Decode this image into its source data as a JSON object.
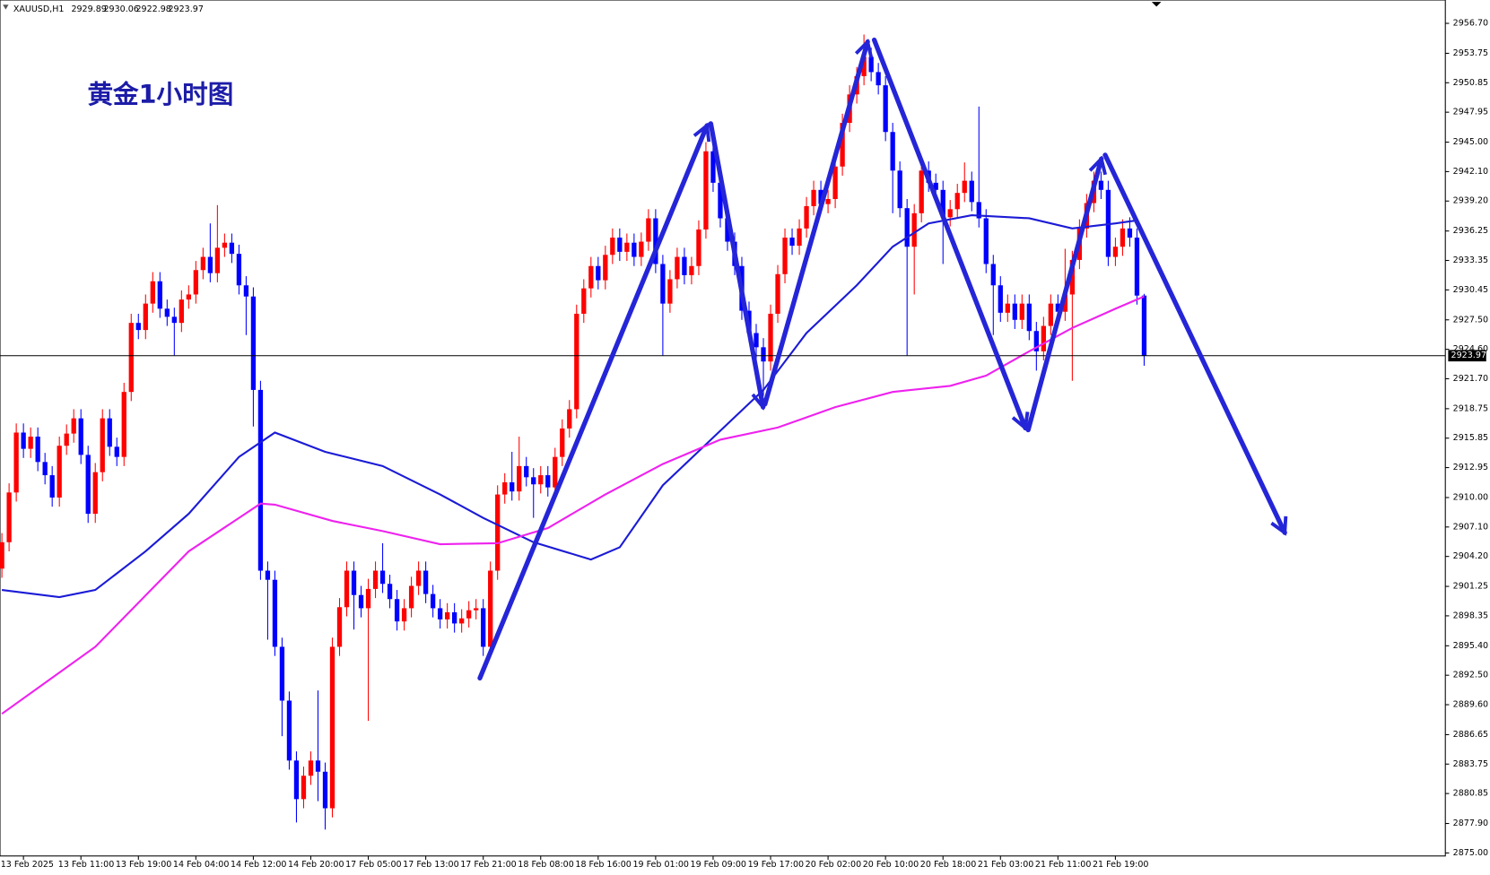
{
  "chart_data": {
    "type": "candlestick",
    "symbol": "XAUUSD,H1",
    "title": "黄金1小时图",
    "up_color": "#ff0000",
    "down_color": "#0000ff",
    "ylim": [
      2874.7,
      2959.0
    ],
    "yticks": [
      {
        "value": 2956.7,
        "label": "2956.70"
      },
      2953.75,
      2950.85,
      2947.95,
      {
        "value": 2945.0,
        "label": "2945.00"
      },
      {
        "value": 2942.1,
        "label": "2942.10"
      },
      {
        "value": 2939.2,
        "label": "2939.20"
      },
      2936.25,
      2933.35,
      2930.45,
      {
        "value": 2927.5,
        "label": "2927.50"
      },
      {
        "value": 2924.6,
        "label": "2924.60"
      },
      {
        "value": 2921.7,
        "label": "2921.70"
      },
      2918.75,
      2915.85,
      2912.95,
      {
        "value": 2910.0,
        "label": "2910.00"
      },
      {
        "value": 2907.1,
        "label": "2907.10"
      },
      {
        "value": 2904.2,
        "label": "2904.20"
      },
      2901.25,
      2898.35,
      {
        "value": 2895.4,
        "label": "2895.40"
      },
      {
        "value": 2892.5,
        "label": "2892.50"
      },
      {
        "value": 2889.6,
        "label": "2889.60"
      },
      2886.65,
      2883.75,
      2880.85,
      {
        "value": 2877.9,
        "label": "2877.90"
      },
      {
        "value": 2875.0,
        "label": "2875.00"
      }
    ],
    "categories": [
      null,
      null,
      null,
      "13 Feb 2025",
      null,
      null,
      null,
      null,
      null,
      null,
      null,
      "13 Feb 11:00",
      null,
      null,
      null,
      null,
      null,
      null,
      null,
      "13 Feb 19:00",
      null,
      null,
      null,
      null,
      null,
      null,
      null,
      "14 Feb 04:00",
      null,
      null,
      null,
      null,
      null,
      null,
      null,
      "14 Feb 12:00",
      null,
      null,
      null,
      null,
      null,
      null,
      null,
      "14 Feb 20:00",
      null,
      null,
      null,
      null,
      null,
      null,
      null,
      "17 Feb 05:00",
      null,
      null,
      null,
      null,
      null,
      null,
      null,
      "17 Feb 13:00",
      null,
      null,
      null,
      null,
      null,
      null,
      null,
      "17 Feb 21:00",
      null,
      null,
      null,
      null,
      null,
      null,
      null,
      "18 Feb 08:00",
      null,
      null,
      null,
      null,
      null,
      null,
      null,
      "18 Feb 16:00",
      null,
      null,
      null,
      null,
      null,
      null,
      null,
      "19 Feb 01:00",
      null,
      null,
      null,
      null,
      null,
      null,
      null,
      "19 Feb 09:00",
      null,
      null,
      null,
      null,
      null,
      null,
      null,
      "19 Feb 17:00",
      null,
      null,
      null,
      null,
      null,
      null,
      null,
      "20 Feb 02:00",
      null,
      null,
      null,
      null,
      null,
      null,
      null,
      "20 Feb 10:00",
      null,
      null,
      null,
      null,
      null,
      null,
      null,
      "20 Feb 18:00",
      null,
      null,
      null,
      null,
      null,
      null,
      null,
      "21 Feb 03:00",
      null,
      null,
      null,
      null,
      null,
      null,
      null,
      "21 Feb 11:00",
      null,
      null,
      null,
      null,
      null,
      null,
      null,
      "21 Feb 19:00",
      null,
      null,
      null,
      null
    ],
    "ohlc": [
      [
        2903.0,
        2906.5,
        2902.1,
        2905.6
      ],
      [
        2905.6,
        2911.4,
        2904.7,
        2910.5
      ],
      [
        2910.5,
        2917.3,
        2909.6,
        2916.4
      ],
      [
        2916.4,
        2917.3,
        2913.9,
        2914.8
      ],
      [
        2914.8,
        2916.9,
        2913.9,
        2916.0
      ],
      [
        2916.0,
        2916.9,
        2912.6,
        2913.5
      ],
      [
        2913.5,
        2914.4,
        2911.3,
        2912.2
      ],
      [
        2912.2,
        2913.1,
        2909.1,
        2910.0
      ],
      [
        2910.0,
        2916.0,
        2909.1,
        2915.1
      ],
      [
        2915.1,
        2917.2,
        2914.2,
        2916.3
      ],
      [
        2916.3,
        2918.7,
        2915.4,
        2917.8
      ],
      [
        2917.8,
        2918.7,
        2913.3,
        2914.2
      ],
      [
        2914.2,
        2915.1,
        2907.5,
        2908.4
      ],
      [
        2908.4,
        2913.4,
        2907.5,
        2912.5
      ],
      [
        2912.5,
        2918.7,
        2911.6,
        2917.8
      ],
      [
        2917.8,
        2918.7,
        2914.1,
        2915.0
      ],
      [
        2915.0,
        2915.9,
        2913.1,
        2914.0
      ],
      [
        2914.0,
        2921.3,
        2913.1,
        2920.4
      ],
      [
        2920.4,
        2928.1,
        2919.5,
        2927.2
      ],
      [
        2927.2,
        2928.1,
        2925.6,
        2926.5
      ],
      [
        2926.5,
        2930.0,
        2925.6,
        2929.1
      ],
      [
        2929.1,
        2932.2,
        2928.2,
        2931.3
      ],
      [
        2931.3,
        2932.2,
        2927.7,
        2928.6
      ],
      [
        2928.6,
        2929.5,
        2926.9,
        2927.8
      ],
      [
        2927.8,
        2928.7,
        2924.0,
        2927.2
      ],
      [
        2927.2,
        2930.4,
        2926.3,
        2929.5
      ],
      [
        2929.5,
        2930.9,
        2928.6,
        2930.0
      ],
      [
        2930.0,
        2933.3,
        2929.1,
        2932.4
      ],
      [
        2932.4,
        2934.6,
        2931.5,
        2933.7
      ],
      [
        2933.7,
        2937.0,
        2931.2,
        2932.1
      ],
      [
        2932.1,
        2938.8,
        2931.2,
        2934.6
      ],
      [
        2934.6,
        2936.0,
        2933.7,
        2935.1
      ],
      [
        2935.1,
        2936.0,
        2933.1,
        2934.0
      ],
      [
        2934.0,
        2934.9,
        2930.0,
        2930.9
      ],
      [
        2930.9,
        2931.8,
        2926.0,
        2929.8
      ],
      [
        2929.8,
        2930.7,
        2917.0,
        2920.6
      ],
      [
        2920.6,
        2921.5,
        2901.9,
        2902.8
      ],
      [
        2902.8,
        2903.7,
        2896.0,
        2901.9
      ],
      [
        2901.9,
        2902.8,
        2894.4,
        2895.3
      ],
      [
        2895.3,
        2896.2,
        2886.5,
        2890.0
      ],
      [
        2890.0,
        2890.9,
        2883.2,
        2884.1
      ],
      [
        2884.1,
        2885.0,
        2878.0,
        2880.3
      ],
      [
        2880.3,
        2883.5,
        2879.4,
        2882.6
      ],
      [
        2882.6,
        2885.0,
        2881.7,
        2884.1
      ],
      [
        2884.1,
        2891.0,
        2880.1,
        2883.0
      ],
      [
        2883.0,
        2883.9,
        2877.3,
        2879.4
      ],
      [
        2879.4,
        2896.2,
        2878.5,
        2895.3
      ],
      [
        2895.3,
        2900.1,
        2894.4,
        2899.2
      ],
      [
        2899.2,
        2903.7,
        2898.3,
        2902.8
      ],
      [
        2902.8,
        2903.7,
        2897.0,
        2900.4
      ],
      [
        2900.4,
        2901.3,
        2898.2,
        2899.1
      ],
      [
        2899.1,
        2902.0,
        2888.0,
        2901.0
      ],
      [
        2901.0,
        2903.7,
        2900.1,
        2902.8
      ],
      [
        2902.8,
        2905.5,
        2900.6,
        2901.5
      ],
      [
        2901.5,
        2902.4,
        2899.1,
        2900.0
      ],
      [
        2900.0,
        2900.9,
        2896.9,
        2897.8
      ],
      [
        2897.8,
        2900.0,
        2896.9,
        2899.1
      ],
      [
        2899.1,
        2902.2,
        2898.2,
        2901.3
      ],
      [
        2901.3,
        2903.7,
        2900.4,
        2902.8
      ],
      [
        2902.8,
        2903.7,
        2899.6,
        2900.5
      ],
      [
        2900.5,
        2901.4,
        2898.2,
        2899.1
      ],
      [
        2899.1,
        2900.0,
        2897.1,
        2898.0
      ],
      [
        2898.0,
        2899.6,
        2897.1,
        2898.7
      ],
      [
        2898.7,
        2899.6,
        2896.7,
        2897.6
      ],
      [
        2897.6,
        2899.0,
        2896.7,
        2898.1
      ],
      [
        2898.1,
        2899.8,
        2897.2,
        2898.9
      ],
      [
        2898.9,
        2900.0,
        2898.0,
        2899.1
      ],
      [
        2899.1,
        2900.0,
        2894.4,
        2895.3
      ],
      [
        2895.3,
        2903.7,
        2894.4,
        2902.8
      ],
      [
        2902.8,
        2911.2,
        2901.9,
        2910.3
      ],
      [
        2910.3,
        2912.4,
        2909.4,
        2911.5
      ],
      [
        2911.5,
        2914.5,
        2909.7,
        2910.6
      ],
      [
        2910.6,
        2916.0,
        2909.7,
        2913.1
      ],
      [
        2913.1,
        2914.0,
        2911.1,
        2912.0
      ],
      [
        2912.0,
        2912.9,
        2908.0,
        2911.3
      ],
      [
        2911.3,
        2913.1,
        2910.4,
        2912.2
      ],
      [
        2912.2,
        2913.1,
        2910.1,
        2911.0
      ],
      [
        2911.0,
        2914.9,
        2910.1,
        2914.0
      ],
      [
        2914.0,
        2917.7,
        2913.1,
        2916.8
      ],
      [
        2916.8,
        2919.6,
        2915.9,
        2918.7
      ],
      [
        2918.7,
        2929.0,
        2917.8,
        2928.1
      ],
      [
        2928.1,
        2931.5,
        2927.2,
        2930.6
      ],
      [
        2930.6,
        2933.7,
        2929.7,
        2932.8
      ],
      [
        2932.8,
        2933.7,
        2930.5,
        2931.4
      ],
      [
        2931.4,
        2934.8,
        2930.5,
        2933.9
      ],
      [
        2933.9,
        2936.5,
        2933.0,
        2935.6
      ],
      [
        2935.6,
        2936.5,
        2933.3,
        2934.2
      ],
      [
        2934.2,
        2936.0,
        2933.3,
        2935.1
      ],
      [
        2935.1,
        2936.0,
        2932.8,
        2933.7
      ],
      [
        2933.7,
        2936.1,
        2932.8,
        2935.2
      ],
      [
        2935.2,
        2938.4,
        2934.3,
        2937.5
      ],
      [
        2937.5,
        2938.4,
        2932.1,
        2933.0
      ],
      [
        2933.0,
        2933.9,
        2924.0,
        2929.1
      ],
      [
        2929.1,
        2932.4,
        2928.2,
        2931.5
      ],
      [
        2931.5,
        2934.6,
        2930.6,
        2933.7
      ],
      [
        2933.7,
        2934.6,
        2931.0,
        2931.9
      ],
      [
        2931.9,
        2933.7,
        2931.0,
        2932.8
      ],
      [
        2932.8,
        2937.3,
        2931.9,
        2936.4
      ],
      [
        2936.4,
        2945.0,
        2935.5,
        2944.1
      ],
      [
        2944.1,
        2945.0,
        2940.1,
        2941.0
      ],
      [
        2941.0,
        2941.9,
        2936.6,
        2937.5
      ],
      [
        2937.5,
        2938.4,
        2934.3,
        2935.2
      ],
      [
        2935.2,
        2936.1,
        2931.9,
        2932.8
      ],
      [
        2932.8,
        2933.7,
        2927.5,
        2928.4
      ],
      [
        2928.4,
        2929.3,
        2925.3,
        2926.2
      ],
      [
        2926.2,
        2927.1,
        2922.0,
        2924.8
      ],
      [
        2924.8,
        2925.7,
        2920.0,
        2923.4
      ],
      [
        2923.4,
        2929.0,
        2922.5,
        2928.1
      ],
      [
        2928.1,
        2932.9,
        2927.2,
        2932.0
      ],
      [
        2932.0,
        2936.5,
        2931.1,
        2935.6
      ],
      [
        2935.6,
        2936.5,
        2933.9,
        2934.8
      ],
      [
        2934.8,
        2937.4,
        2933.9,
        2936.5
      ],
      [
        2936.5,
        2939.6,
        2935.6,
        2938.7
      ],
      [
        2938.7,
        2941.2,
        2937.8,
        2940.3
      ],
      [
        2940.3,
        2941.2,
        2938.0,
        2938.9
      ],
      [
        2938.9,
        2940.3,
        2938.0,
        2939.4
      ],
      [
        2939.4,
        2943.5,
        2938.5,
        2942.6
      ],
      [
        2942.6,
        2947.8,
        2941.7,
        2946.9
      ],
      [
        2946.9,
        2950.6,
        2946.0,
        2949.7
      ],
      [
        2949.7,
        2952.4,
        2948.8,
        2951.5
      ],
      [
        2951.5,
        2955.6,
        2950.6,
        2953.4
      ],
      [
        2953.4,
        2954.3,
        2951.0,
        2951.9
      ],
      [
        2951.9,
        2952.8,
        2949.7,
        2950.6
      ],
      [
        2950.6,
        2951.5,
        2945.1,
        2946.0
      ],
      [
        2946.0,
        2946.9,
        2938.0,
        2942.2
      ],
      [
        2942.2,
        2943.1,
        2937.6,
        2938.5
      ],
      [
        2938.5,
        2939.4,
        2924.0,
        2934.7
      ],
      [
        2934.7,
        2938.9,
        2930.0,
        2938.0
      ],
      [
        2938.0,
        2943.1,
        2937.1,
        2942.2
      ],
      [
        2942.2,
        2943.1,
        2940.1,
        2941.0
      ],
      [
        2941.0,
        2941.9,
        2939.4,
        2940.3
      ],
      [
        2940.3,
        2941.2,
        2933.0,
        2937.6
      ],
      [
        2937.6,
        2939.3,
        2936.7,
        2938.4
      ],
      [
        2938.4,
        2940.9,
        2937.5,
        2940.0
      ],
      [
        2940.0,
        2943.0,
        2939.1,
        2941.2
      ],
      [
        2941.2,
        2942.1,
        2938.2,
        2939.1
      ],
      [
        2939.1,
        2948.5,
        2936.6,
        2937.5
      ],
      [
        2937.5,
        2938.4,
        2932.1,
        2933.0
      ],
      [
        2933.0,
        2933.9,
        2926.0,
        2930.9
      ],
      [
        2930.9,
        2931.8,
        2927.3,
        2928.2
      ],
      [
        2928.2,
        2930.0,
        2927.3,
        2929.1
      ],
      [
        2929.1,
        2930.0,
        2926.6,
        2927.5
      ],
      [
        2927.5,
        2930.0,
        2926.6,
        2929.1
      ],
      [
        2929.1,
        2930.0,
        2925.5,
        2926.4
      ],
      [
        2926.4,
        2927.3,
        2922.5,
        2924.4
      ],
      [
        2924.4,
        2927.8,
        2923.5,
        2926.9
      ],
      [
        2926.9,
        2930.0,
        2926.0,
        2929.1
      ],
      [
        2929.1,
        2930.0,
        2927.4,
        2928.3
      ],
      [
        2928.3,
        2934.5,
        2927.4,
        2930.0
      ],
      [
        2930.0,
        2934.3,
        2921.5,
        2933.4
      ],
      [
        2933.4,
        2937.4,
        2932.5,
        2936.5
      ],
      [
        2936.5,
        2939.9,
        2935.6,
        2939.0
      ],
      [
        2939.0,
        2942.1,
        2938.1,
        2941.2
      ],
      [
        2941.2,
        2942.1,
        2939.4,
        2940.3
      ],
      [
        2940.3,
        2941.2,
        2932.8,
        2933.7
      ],
      [
        2933.7,
        2935.6,
        2932.8,
        2934.7
      ],
      [
        2934.7,
        2937.4,
        2933.8,
        2936.5
      ],
      [
        2936.5,
        2937.6,
        2934.7,
        2935.6
      ],
      [
        2935.6,
        2936.5,
        2929.0,
        2929.89
      ],
      [
        2929.89,
        2930.06,
        2922.98,
        2923.97
      ]
    ],
    "series": [
      {
        "color": "#1b1bd6",
        "x": [
          0,
          8,
          13,
          20,
          26,
          33,
          38,
          45,
          53,
          61,
          67,
          74,
          82,
          86,
          92,
          99,
          106,
          112,
          119,
          124,
          129,
          135,
          143,
          149,
          155,
          158
        ],
        "values": [
          2900.9,
          2900.2,
          2900.9,
          2904.7,
          2908.4,
          2914.0,
          2916.4,
          2914.5,
          2913.1,
          2910.3,
          2908.0,
          2905.6,
          2903.9,
          2905.1,
          2911.2,
          2915.9,
          2920.6,
          2926.2,
          2930.9,
          2934.7,
          2937.0,
          2937.8,
          2937.5,
          2936.5,
          2937.0,
          2937.3
        ]
      },
      {
        "color": "#ee22ee",
        "x": [
          0,
          13,
          26,
          36,
          38,
          46,
          53,
          61,
          69,
          76,
          84,
          92,
          100,
          108,
          116,
          124,
          132,
          137,
          143,
          149,
          155,
          159
        ],
        "values": [
          2888.7,
          2895.3,
          2904.7,
          2909.4,
          2909.3,
          2907.7,
          2906.7,
          2905.4,
          2905.5,
          2907.0,
          2910.3,
          2913.3,
          2915.7,
          2916.9,
          2918.9,
          2920.4,
          2921.0,
          2922.0,
          2924.4,
          2926.7,
          2928.6,
          2929.8
        ]
      }
    ]
  }
}
